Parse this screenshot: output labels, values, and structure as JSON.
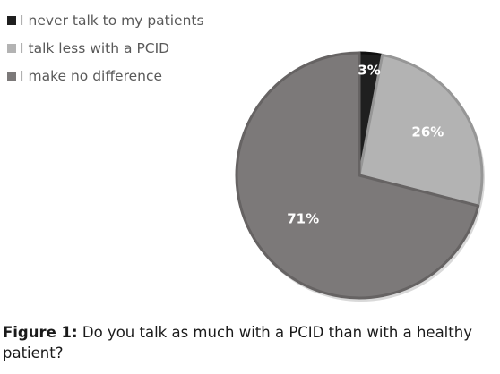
{
  "chart_data": {
    "type": "pie",
    "categories": [
      "I never talk to my patients",
      "I talk less with a PCID",
      "I make no difference"
    ],
    "values": [
      3,
      26,
      71
    ],
    "data_labels": [
      "3%",
      "26%",
      "71%"
    ],
    "colors": [
      "#1f1f1f",
      "#b3b3b3",
      "#7c7979"
    ],
    "edge_colors": [
      "#101010",
      "#969696",
      "#666363"
    ],
    "label_colors": [
      "#ffffff",
      "#ffffff",
      "#ffffff"
    ],
    "legend_position": "top-left"
  },
  "caption": {
    "label": "Figure 1:",
    "text": "Do you talk as much with a PCID than with a healthy patient?"
  }
}
